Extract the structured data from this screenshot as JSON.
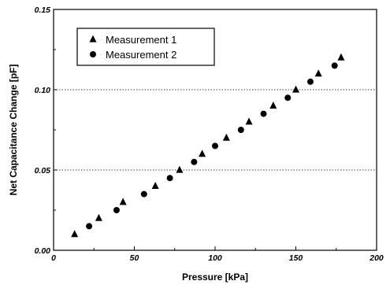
{
  "chart_data": {
    "type": "scatter",
    "title": "",
    "xlabel": "Pressure [kPa]",
    "ylabel": "Net Capacitance Change [pF]",
    "xlim": [
      0,
      200
    ],
    "ylim": [
      0,
      0.15
    ],
    "x_ticks": [
      "0",
      "50",
      "100",
      "150",
      "200"
    ],
    "y_ticks": [
      "0.00",
      "0.05",
      "0.10",
      "0.15"
    ],
    "grid": "dotted horizontal lines at 0.05 and 0.10",
    "legend_placement": "top-left",
    "series": [
      {
        "name": "Measurement 1",
        "marker": "triangle",
        "x": [
          13,
          28,
          43,
          63,
          78,
          92,
          107,
          121,
          136,
          150,
          164,
          178
        ],
        "y": [
          0.01,
          0.02,
          0.03,
          0.04,
          0.05,
          0.06,
          0.07,
          0.08,
          0.09,
          0.1,
          0.11,
          0.12
        ]
      },
      {
        "name": "Measurement 2",
        "marker": "circle",
        "x": [
          22,
          39,
          56,
          72,
          87,
          100,
          116,
          130,
          145,
          159,
          174
        ],
        "y": [
          0.015,
          0.025,
          0.035,
          0.045,
          0.055,
          0.065,
          0.075,
          0.085,
          0.095,
          0.105,
          0.115
        ]
      }
    ]
  }
}
